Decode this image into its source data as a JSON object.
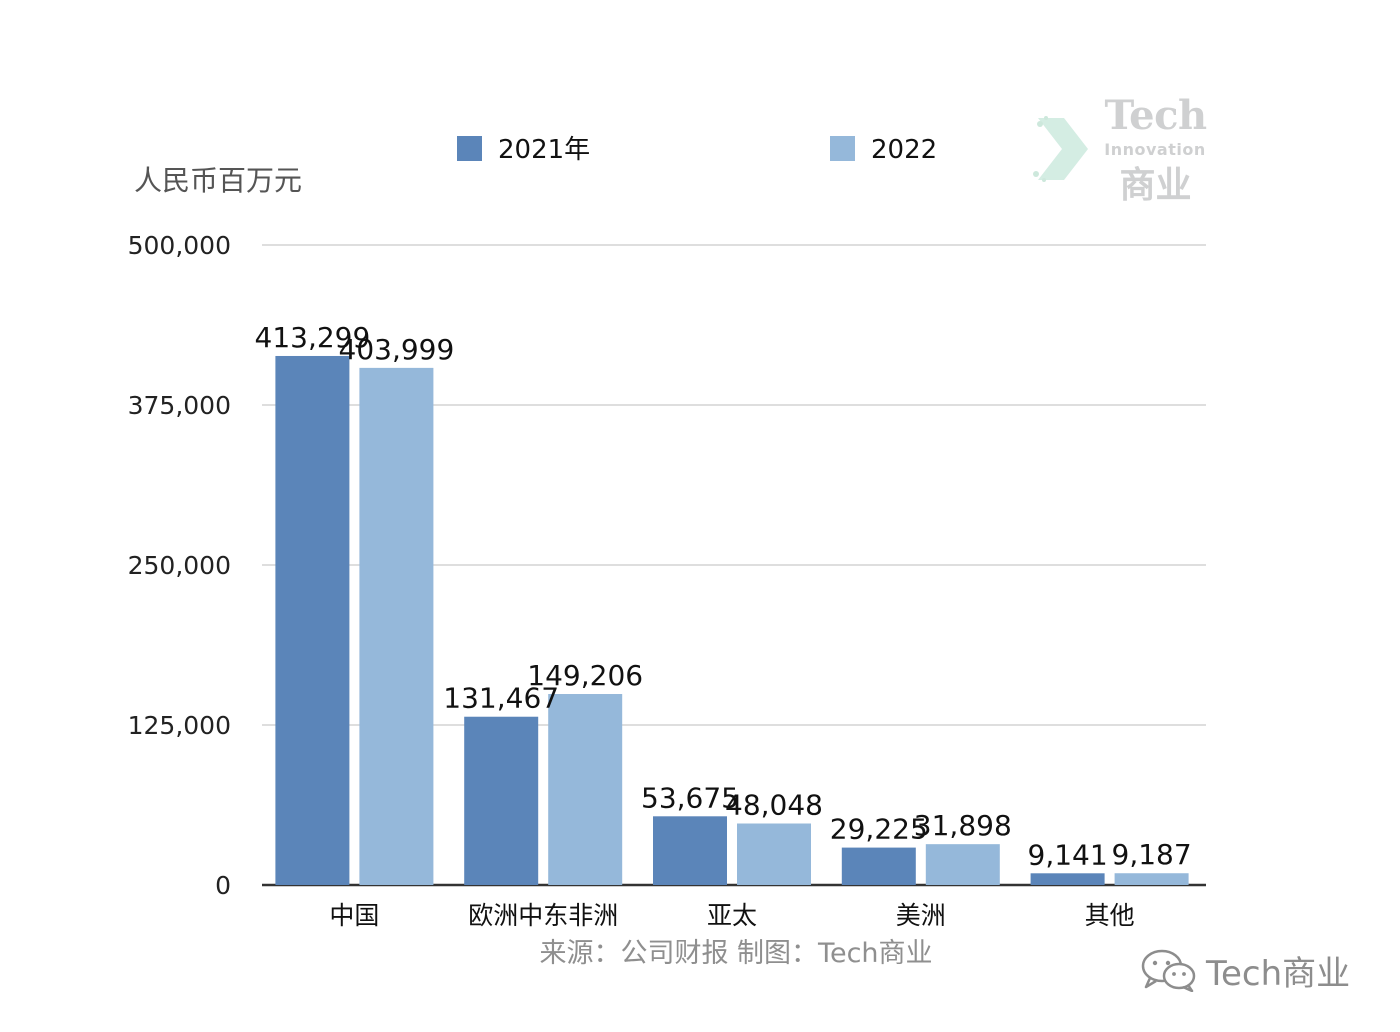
{
  "legend": [
    {
      "label": "2021年",
      "color": "#5b85b9"
    },
    {
      "label": "2022",
      "color": "#95b8da"
    }
  ],
  "unit_label": "人民币百万元",
  "source_text": "来源：公司财报  制图：Tech商业",
  "logo": {
    "line1": "Tech",
    "line2": "Innovation",
    "line3": "商业"
  },
  "wechat": {
    "icon": "wechat-icon",
    "text": "Tech商业"
  },
  "chart_data": {
    "type": "bar",
    "categories": [
      "中国",
      "欧洲中东非洲",
      "亚太",
      "美洲",
      "其他"
    ],
    "series": [
      {
        "name": "2021年",
        "color": "#5b85b9",
        "values": [
          413299,
          131467,
          53675,
          29225,
          9141
        ],
        "labels": [
          "413,299",
          "131,467",
          "53,675",
          "29,225",
          "9,141"
        ]
      },
      {
        "name": "2022",
        "color": "#95b8da",
        "values": [
          403999,
          149206,
          48048,
          31898,
          9187
        ],
        "labels": [
          "403,999",
          "149,206",
          "48,048",
          "31,898",
          "9,187"
        ]
      }
    ],
    "ylabel": "人民币百万元",
    "ylim": [
      0,
      500000
    ],
    "yticks": [
      0,
      125000,
      250000,
      375000,
      500000
    ],
    "ytick_labels": [
      "0",
      "125,000",
      "250,000",
      "375,000",
      "500,000"
    ],
    "grid": true,
    "legend_position": "top"
  }
}
